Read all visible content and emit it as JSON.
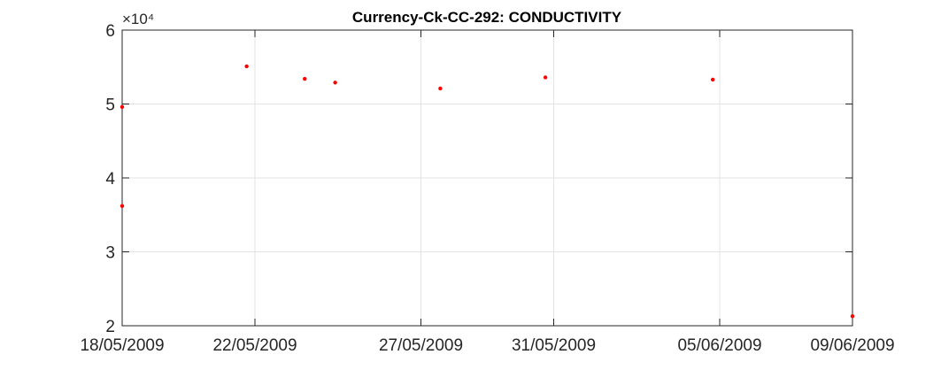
{
  "chart_data": {
    "type": "scatter",
    "title": "Currency-Ck-CC-292: CONDUCTIVITY",
    "xlabel": "",
    "ylabel": "",
    "x_axis_type": "date",
    "xlim": [
      "2009-05-18",
      "2009-06-09"
    ],
    "ylim": [
      20000,
      60000
    ],
    "y_exponent_label": "×10⁴",
    "x_ticks": [
      {
        "date": "2009-05-18",
        "label": "18/05/2009"
      },
      {
        "date": "2009-05-22",
        "label": "22/05/2009"
      },
      {
        "date": "2009-05-27",
        "label": "27/05/2009"
      },
      {
        "date": "2009-05-31",
        "label": "31/05/2009"
      },
      {
        "date": "2009-06-05",
        "label": "05/06/2009"
      },
      {
        "date": "2009-06-09",
        "label": "09/06/2009"
      }
    ],
    "y_ticks": [
      {
        "value": 20000,
        "label": "2"
      },
      {
        "value": 30000,
        "label": "3"
      },
      {
        "value": 40000,
        "label": "4"
      },
      {
        "value": 50000,
        "label": "5"
      },
      {
        "value": 60000,
        "label": "6"
      }
    ],
    "grid": true,
    "marker_color": "#ff0000",
    "points": [
      {
        "x": "2009-05-18",
        "y": 49600
      },
      {
        "x": "2009-05-18",
        "y": 36200
      },
      {
        "x": "2009-05-21T18:00",
        "y": 55100
      },
      {
        "x": "2009-05-23T12:00",
        "y": 53400
      },
      {
        "x": "2009-05-24T10:00",
        "y": 52900
      },
      {
        "x": "2009-05-27T14:00",
        "y": 52100
      },
      {
        "x": "2009-05-30T18:00",
        "y": 53600
      },
      {
        "x": "2009-06-04T19:00",
        "y": 53300
      },
      {
        "x": "2009-06-09",
        "y": 21300
      }
    ]
  }
}
